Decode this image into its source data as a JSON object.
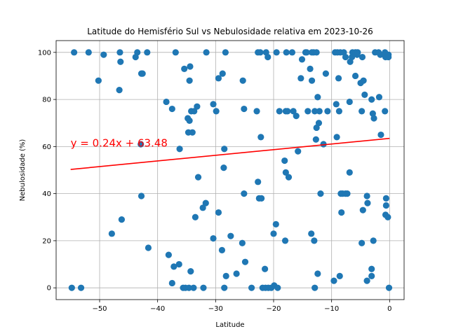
{
  "chart_data": {
    "type": "scatter",
    "title": "Latitude do Hemisfério Sul vs Nebulosidade relativa em 2023-10-26",
    "xlabel": "Latitude",
    "ylabel": "Nebulosidade (%)",
    "xlim": [
      -57.5,
      2.5
    ],
    "ylim": [
      -5,
      105
    ],
    "xticks": [
      -50,
      -40,
      -30,
      -20,
      -10,
      0
    ],
    "yticks": [
      0,
      20,
      40,
      60,
      80,
      100
    ],
    "grid": true,
    "point_color": "#1f77b4",
    "line_color": "#ff0000",
    "regression": {
      "equation": "y = 0.24x + 63.48",
      "slope": 0.24,
      "intercept": 63.48,
      "x_range": [
        -55,
        0
      ],
      "annotation_at": [
        -55,
        60
      ]
    },
    "points": [
      [
        -54.8,
        0
      ],
      [
        -53.2,
        0
      ],
      [
        -54.4,
        100
      ],
      [
        -51.9,
        100
      ],
      [
        -49.3,
        99
      ],
      [
        -50.2,
        88
      ],
      [
        -46.5,
        100
      ],
      [
        -46.4,
        96
      ],
      [
        -46.6,
        84
      ],
      [
        -43.8,
        98
      ],
      [
        -43.5,
        100
      ],
      [
        -42.8,
        91
      ],
      [
        -42.6,
        91
      ],
      [
        -41.8,
        100
      ],
      [
        -42.9,
        61
      ],
      [
        -42.8,
        39
      ],
      [
        -41.6,
        17
      ],
      [
        -47.9,
        23
      ],
      [
        -46.2,
        29
      ],
      [
        -38.5,
        79
      ],
      [
        -37.5,
        76
      ],
      [
        -36.9,
        100
      ],
      [
        -38.1,
        14
      ],
      [
        -37.2,
        9
      ],
      [
        -36.3,
        10
      ],
      [
        -37.5,
        2
      ],
      [
        -35.4,
        93
      ],
      [
        -34.4,
        94
      ],
      [
        -34.8,
        72
      ],
      [
        -34.5,
        71
      ],
      [
        -34.7,
        66
      ],
      [
        -34.0,
        66
      ],
      [
        -34.2,
        75
      ],
      [
        -33.7,
        75
      ],
      [
        -33.2,
        77
      ],
      [
        -34.5,
        88
      ],
      [
        -33.5,
        30
      ],
      [
        -33.0,
        47
      ],
      [
        -32.2,
        34
      ],
      [
        -31.7,
        36
      ],
      [
        -31.6,
        100
      ],
      [
        -34.3,
        7
      ],
      [
        -35.6,
        0
      ],
      [
        -35.2,
        0
      ],
      [
        -34.6,
        0
      ],
      [
        -33.8,
        0
      ],
      [
        -32.1,
        0
      ],
      [
        -36.2,
        59
      ],
      [
        -30.4,
        78
      ],
      [
        -29.9,
        75
      ],
      [
        -29.5,
        89
      ],
      [
        -28.8,
        91
      ],
      [
        -28.3,
        100
      ],
      [
        -28.5,
        59
      ],
      [
        -28.6,
        51
      ],
      [
        -30.4,
        21
      ],
      [
        -29.5,
        32
      ],
      [
        -28.9,
        16
      ],
      [
        -28.2,
        5
      ],
      [
        -27.4,
        22
      ],
      [
        -26.4,
        6
      ],
      [
        -28.5,
        0
      ],
      [
        -25.3,
        88
      ],
      [
        -25.1,
        76
      ],
      [
        -25.1,
        40
      ],
      [
        -24.9,
        11
      ],
      [
        -25.4,
        19
      ],
      [
        -23.8,
        0
      ],
      [
        -22.7,
        100
      ],
      [
        -22.3,
        100
      ],
      [
        -21.3,
        100
      ],
      [
        -21.0,
        98
      ],
      [
        -19.5,
        100
      ],
      [
        -22.9,
        75
      ],
      [
        -22.2,
        64
      ],
      [
        -22.7,
        45
      ],
      [
        -22.5,
        38
      ],
      [
        -22.1,
        38
      ],
      [
        -21.5,
        8
      ],
      [
        -21.9,
        0
      ],
      [
        -21.4,
        0
      ],
      [
        -20.9,
        0
      ],
      [
        -20.4,
        0
      ],
      [
        -19.9,
        1
      ],
      [
        -19.3,
        0
      ],
      [
        -20.0,
        23
      ],
      [
        -19.6,
        27
      ],
      [
        -19.0,
        75
      ],
      [
        -17.9,
        75
      ],
      [
        -17.6,
        75
      ],
      [
        -18.1,
        54
      ],
      [
        -17.9,
        49
      ],
      [
        -17.4,
        47
      ],
      [
        -18.0,
        20
      ],
      [
        -17.8,
        100
      ],
      [
        -16.8,
        100
      ],
      [
        -16.6,
        75
      ],
      [
        -16.1,
        73
      ],
      [
        -15.8,
        58
      ],
      [
        -15.3,
        89
      ],
      [
        -15.1,
        97
      ],
      [
        -14.5,
        100
      ],
      [
        -14.3,
        100
      ],
      [
        -14.1,
        75
      ],
      [
        -13.7,
        93
      ],
      [
        -13.4,
        100
      ],
      [
        -13.1,
        100
      ],
      [
        -12.6,
        100
      ],
      [
        -13.4,
        88
      ],
      [
        -12.9,
        75
      ],
      [
        -12.1,
        75
      ],
      [
        -12.4,
        81
      ],
      [
        -12.2,
        70
      ],
      [
        -12.6,
        68
      ],
      [
        -12.7,
        63
      ],
      [
        -11.9,
        40
      ],
      [
        -13.5,
        23
      ],
      [
        -13.0,
        20
      ],
      [
        -12.4,
        6
      ],
      [
        -12.9,
        0
      ],
      [
        -11.4,
        61
      ],
      [
        -10.7,
        75
      ],
      [
        -11.0,
        91
      ],
      [
        -9.4,
        100
      ],
      [
        -9.0,
        100
      ],
      [
        -8.5,
        100
      ],
      [
        -7.9,
        100
      ],
      [
        -9.2,
        78
      ],
      [
        -8.8,
        89
      ],
      [
        -8.7,
        75
      ],
      [
        -9.1,
        64
      ],
      [
        -8.4,
        40
      ],
      [
        -8.1,
        40
      ],
      [
        -7.6,
        40
      ],
      [
        -7.3,
        40
      ],
      [
        -8.3,
        32
      ],
      [
        -8.6,
        5
      ],
      [
        -9.6,
        3
      ],
      [
        -7.6,
        98
      ],
      [
        -6.4,
        100
      ],
      [
        -6.8,
        96
      ],
      [
        -6.5,
        98
      ],
      [
        -5.9,
        100
      ],
      [
        -5.5,
        100
      ],
      [
        -5.6,
        99
      ],
      [
        -5.0,
        87
      ],
      [
        -4.5,
        88
      ],
      [
        -4.7,
        98
      ],
      [
        -5.9,
        90
      ],
      [
        -6.9,
        79
      ],
      [
        -6.9,
        49
      ],
      [
        -4.8,
        75
      ],
      [
        -4.3,
        82
      ],
      [
        -4.6,
        33
      ],
      [
        -4.8,
        19
      ],
      [
        -3.9,
        39
      ],
      [
        -3.8,
        36
      ],
      [
        -3.9,
        3
      ],
      [
        -3.1,
        8
      ],
      [
        -3.1,
        5
      ],
      [
        -2.8,
        20
      ],
      [
        -2.9,
        74
      ],
      [
        -2.7,
        72
      ],
      [
        -3.1,
        80
      ],
      [
        -2.5,
        100
      ],
      [
        -1.9,
        100
      ],
      [
        -1.6,
        99
      ],
      [
        -1.8,
        81
      ],
      [
        -1.5,
        65
      ],
      [
        -0.8,
        100
      ],
      [
        -0.7,
        98
      ],
      [
        -0.2,
        99
      ],
      [
        -0.2,
        98
      ],
      [
        -0.8,
        75
      ],
      [
        -0.6,
        38
      ],
      [
        -0.6,
        35
      ],
      [
        -0.7,
        31
      ],
      [
        -0.3,
        30
      ],
      [
        -0.1,
        0
      ]
    ]
  }
}
